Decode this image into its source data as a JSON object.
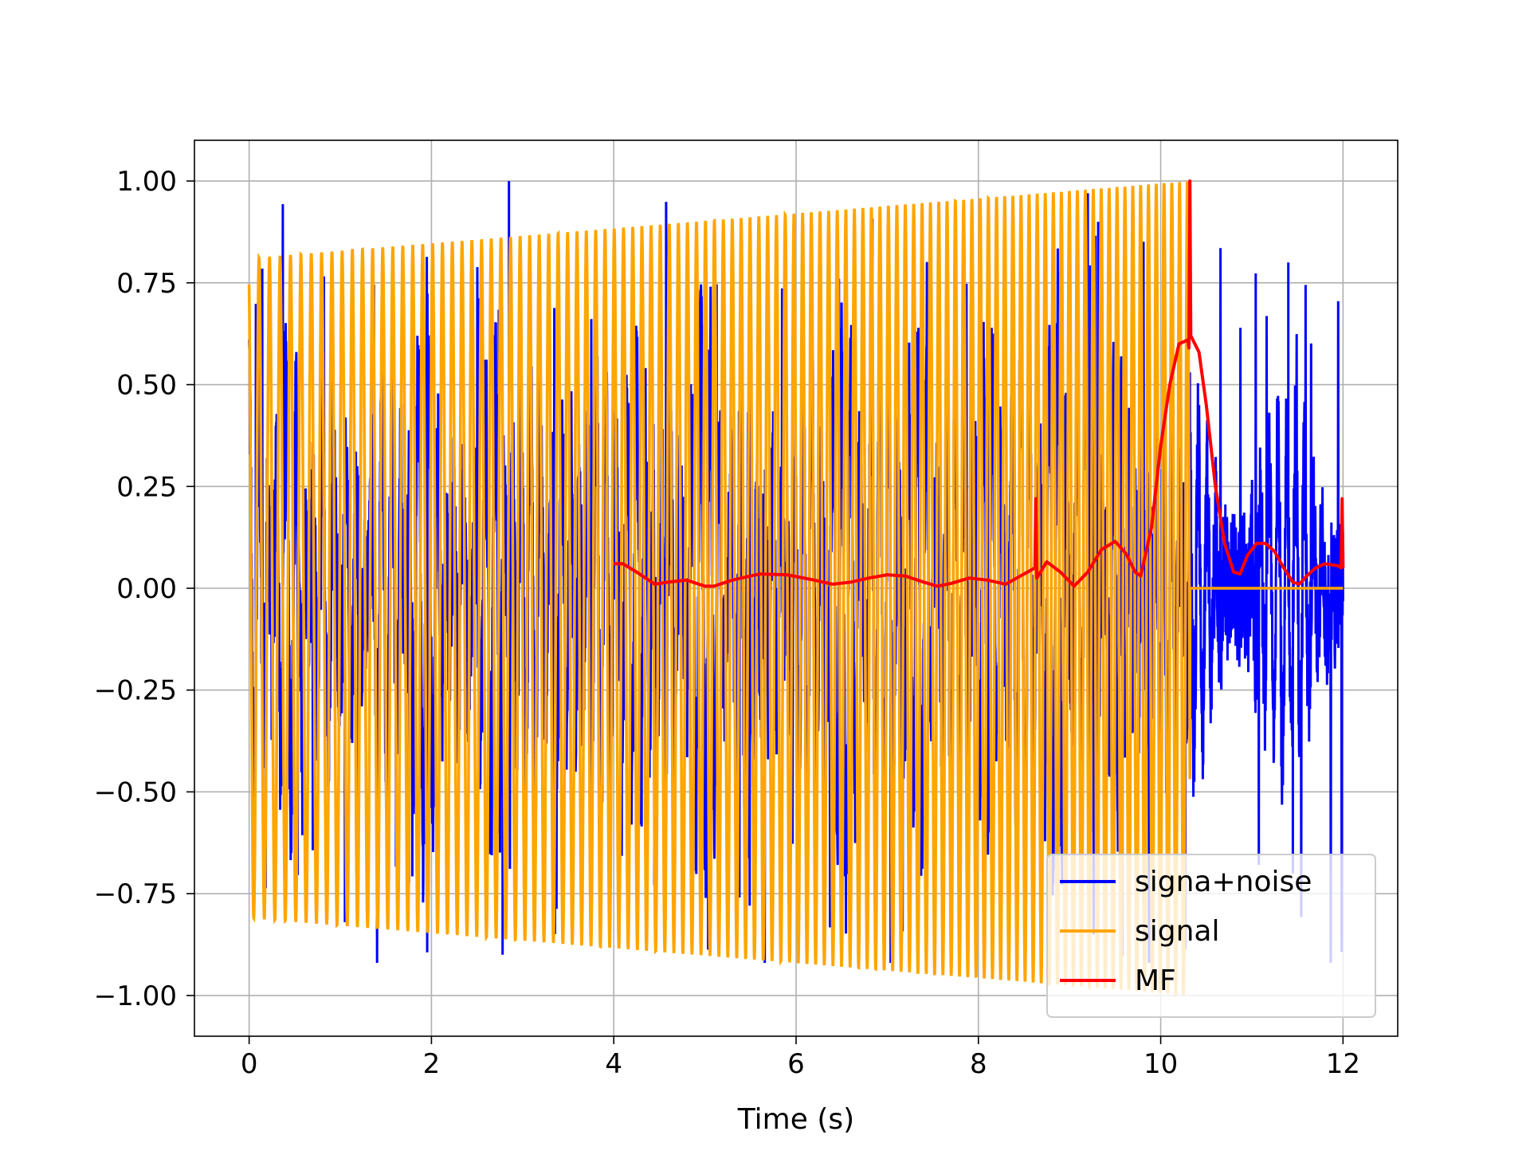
{
  "chart_data": {
    "type": "line",
    "title": "",
    "xlabel": "Time (s)",
    "ylabel": "",
    "xlim": [
      -0.6,
      12.6
    ],
    "ylim": [
      -1.1,
      1.1
    ],
    "xticks": [
      0,
      2,
      4,
      6,
      8,
      10,
      12
    ],
    "xtick_labels": [
      "0",
      "2",
      "4",
      "6",
      "8",
      "10",
      "12"
    ],
    "yticks": [
      -1.0,
      -0.75,
      -0.5,
      -0.25,
      0.0,
      0.25,
      0.5,
      0.75,
      1.0
    ],
    "ytick_labels": [
      "−1.00",
      "−0.75",
      "−0.50",
      "−0.25",
      "0.00",
      "0.25",
      "0.50",
      "0.75",
      "1.00"
    ],
    "grid": true,
    "legend_position": "bottom-right",
    "series": [
      {
        "name": "signa+noise",
        "color": "#0000ff",
        "description_samples": {
          "x_range": [
            0,
            12
          ],
          "peaks": [
            [
              2.85,
              1.0
            ],
            [
              2.78,
              -0.9
            ],
            [
              1.05,
              -0.82
            ],
            [
              9.2,
              0.97
            ],
            [
              11.4,
              0.8
            ],
            [
              11.45,
              -0.7
            ]
          ]
        }
      },
      {
        "name": "signal",
        "color": "#ffa500",
        "description_samples": {
          "x_range": [
            0,
            12
          ],
          "chirp_until": 10.32,
          "envelope_start": 0.81,
          "envelope_end": 1.0,
          "zero_after": 10.32
        }
      },
      {
        "name": "MF",
        "color": "#ff0000",
        "points": [
          [
            4.0,
            0.06
          ],
          [
            4.1,
            0.06
          ],
          [
            4.25,
            0.04
          ],
          [
            4.45,
            0.01
          ],
          [
            4.6,
            0.015
          ],
          [
            4.8,
            0.02
          ],
          [
            5.0,
            0.005
          ],
          [
            5.1,
            0.005
          ],
          [
            5.3,
            0.02
          ],
          [
            5.6,
            0.035
          ],
          [
            5.9,
            0.033
          ],
          [
            6.2,
            0.02
          ],
          [
            6.4,
            0.01
          ],
          [
            6.6,
            0.015
          ],
          [
            6.8,
            0.025
          ],
          [
            7.0,
            0.033
          ],
          [
            7.2,
            0.03
          ],
          [
            7.4,
            0.015
          ],
          [
            7.55,
            0.005
          ],
          [
            7.7,
            0.012
          ],
          [
            7.9,
            0.025
          ],
          [
            8.1,
            0.02
          ],
          [
            8.3,
            0.01
          ],
          [
            8.5,
            0.035
          ],
          [
            8.62,
            0.05
          ],
          [
            8.63,
            0.22
          ],
          [
            8.64,
            0.025
          ],
          [
            8.75,
            0.065
          ],
          [
            8.9,
            0.04
          ],
          [
            9.05,
            0.005
          ],
          [
            9.2,
            0.04
          ],
          [
            9.35,
            0.095
          ],
          [
            9.5,
            0.115
          ],
          [
            9.62,
            0.085
          ],
          [
            9.72,
            0.04
          ],
          [
            9.78,
            0.03
          ],
          [
            9.9,
            0.15
          ],
          [
            10.0,
            0.35
          ],
          [
            10.1,
            0.5
          ],
          [
            10.2,
            0.6
          ],
          [
            10.3,
            0.61
          ],
          [
            10.31,
            0.59
          ],
          [
            10.32,
            1.0
          ],
          [
            10.33,
            0.62
          ],
          [
            10.42,
            0.58
          ],
          [
            10.5,
            0.45
          ],
          [
            10.6,
            0.25
          ],
          [
            10.7,
            0.11
          ],
          [
            10.8,
            0.04
          ],
          [
            10.87,
            0.035
          ],
          [
            10.95,
            0.08
          ],
          [
            11.05,
            0.11
          ],
          [
            11.15,
            0.11
          ],
          [
            11.25,
            0.09
          ],
          [
            11.35,
            0.05
          ],
          [
            11.45,
            0.015
          ],
          [
            11.52,
            0.01
          ],
          [
            11.6,
            0.03
          ],
          [
            11.7,
            0.05
          ],
          [
            11.8,
            0.06
          ],
          [
            11.95,
            0.055
          ],
          [
            11.98,
            0.05
          ],
          [
            11.99,
            0.22
          ],
          [
            12.0,
            0.05
          ]
        ]
      }
    ]
  }
}
